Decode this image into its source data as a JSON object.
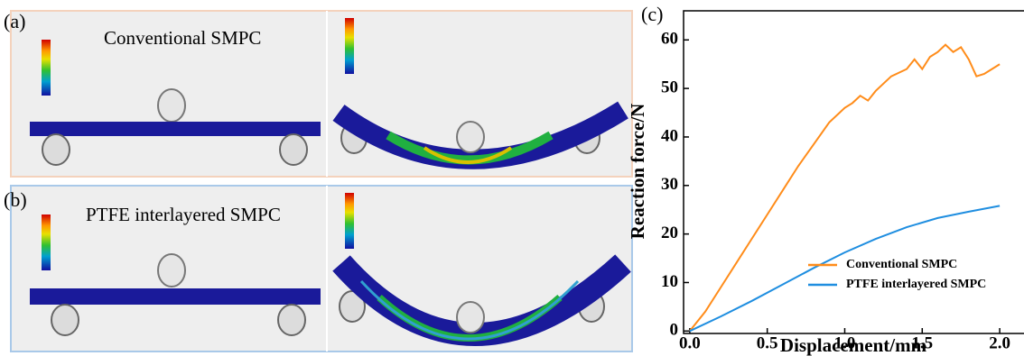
{
  "panels": [
    {
      "label": "(a)",
      "title": "Conventional SMPC"
    },
    {
      "label": "(b)",
      "title": "PTFE interlayered SMPC"
    }
  ],
  "chart_data": {
    "type": "line",
    "label": "(c)",
    "x_label": "Displacement/mm",
    "y_label": "Reaction force/N",
    "xlim": [
      -0.04,
      2.25
    ],
    "ylim": [
      -0.5,
      66
    ],
    "xticks": [
      {
        "value": 0,
        "label": "0.0"
      },
      0.5,
      {
        "value": 1,
        "label": "1.0"
      },
      1.5,
      {
        "value": 2,
        "label": "2.0"
      }
    ],
    "yticks": [
      0,
      10,
      20,
      30,
      40,
      50,
      60
    ],
    "legend": "lower right",
    "series": [
      {
        "name": "Conventional SMPC",
        "color": "#ff8c1a",
        "x": [
          0,
          0.1,
          0.2,
          0.3,
          0.4,
          0.5,
          0.6,
          0.7,
          0.8,
          0.9,
          1.0,
          1.05,
          1.1,
          1.15,
          1.2,
          1.3,
          1.4,
          1.45,
          1.5,
          1.55,
          1.6,
          1.65,
          1.7,
          1.75,
          1.8,
          1.85,
          1.9,
          1.95,
          2.0
        ],
        "values": [
          0,
          4,
          9,
          14,
          19,
          24,
          29,
          34,
          38.5,
          43,
          46,
          47,
          48.5,
          47.5,
          49.5,
          52.5,
          54,
          56,
          54,
          56.5,
          57.5,
          59,
          57.5,
          58.5,
          56,
          52.5,
          53,
          54,
          55
        ]
      },
      {
        "name": "PTFE interlayered SMPC",
        "color": "#1f8ee0",
        "x": [
          0,
          0.2,
          0.4,
          0.6,
          0.8,
          1.0,
          1.2,
          1.4,
          1.6,
          1.8,
          1.9,
          2.0
        ],
        "values": [
          0,
          3,
          6.2,
          9.6,
          13,
          16.2,
          19,
          21.4,
          23.3,
          24.6,
          25.2,
          25.8
        ]
      }
    ]
  }
}
